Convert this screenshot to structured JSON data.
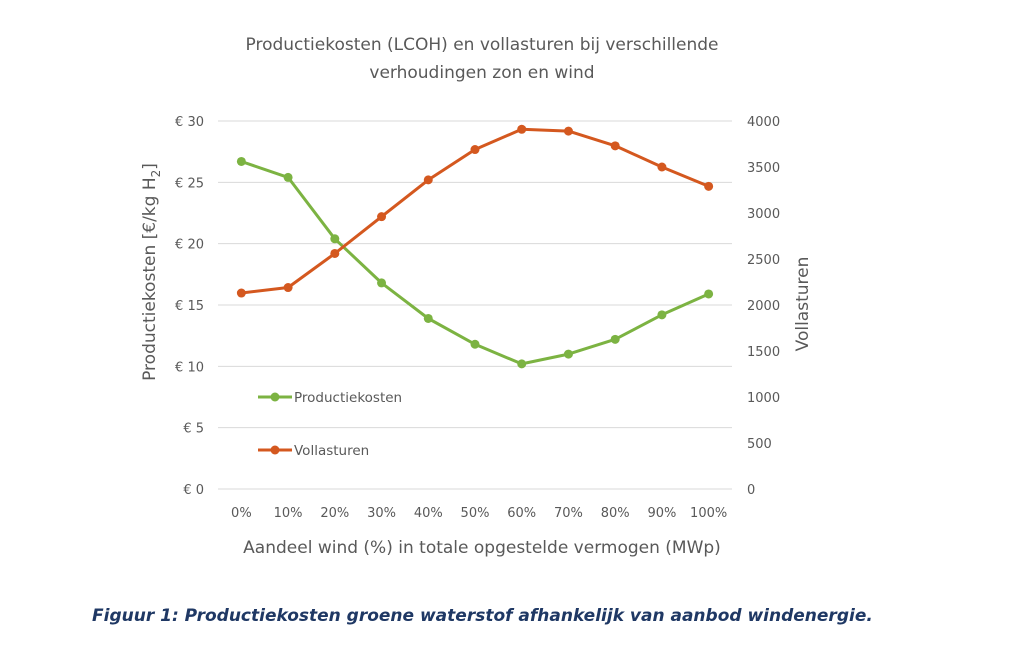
{
  "chart_data": {
    "type": "line",
    "title_line1": "Productiekosten (LCOH) en vollasturen bij verschillende",
    "title_line2": "verhoudingen zon en wind",
    "xlabel": "Aandeel wind (%) in totale opgestelde vermogen (MWp)",
    "ylabel_left": "Productiekosten [€/kg H",
    "ylabel_left_sub": "2",
    "ylabel_left_end": "]",
    "ylabel_right": "Vollasturen",
    "categories": [
      "0%",
      "10%",
      "20%",
      "30%",
      "40%",
      "50%",
      "60%",
      "70%",
      "80%",
      "90%",
      "100%"
    ],
    "y_left": {
      "range": [
        0,
        30
      ],
      "ticks": [
        0,
        5,
        10,
        15,
        20,
        25,
        30
      ],
      "tick_labels": [
        "€ 0",
        "€ 5",
        "€ 10",
        "€ 15",
        "€ 20",
        "€ 25",
        "€ 30"
      ]
    },
    "y_right": {
      "range": [
        0,
        4000
      ],
      "ticks": [
        0,
        500,
        1000,
        1500,
        2000,
        2500,
        3000,
        3500,
        4000
      ],
      "tick_labels": [
        "0",
        "500",
        "1000",
        "1500",
        "2000",
        "2500",
        "3000",
        "3500",
        "4000"
      ]
    },
    "grid": "horizontal",
    "legend_placement": "inside-left",
    "series": [
      {
        "name": "Productiekosten",
        "axis": "left",
        "color": "#7cb342",
        "values": [
          26.7,
          25.4,
          20.4,
          16.8,
          13.9,
          11.8,
          10.2,
          11.0,
          12.2,
          14.2,
          15.9
        ]
      },
      {
        "name": "Vollasturen",
        "axis": "right",
        "color": "#d4581f",
        "values": [
          2130,
          2190,
          2560,
          2960,
          3360,
          3690,
          3910,
          3890,
          3730,
          3500,
          3290
        ]
      }
    ]
  },
  "caption": "Figuur 1: Productiekosten groene waterstof afhankelijk van aanbod windenergie."
}
